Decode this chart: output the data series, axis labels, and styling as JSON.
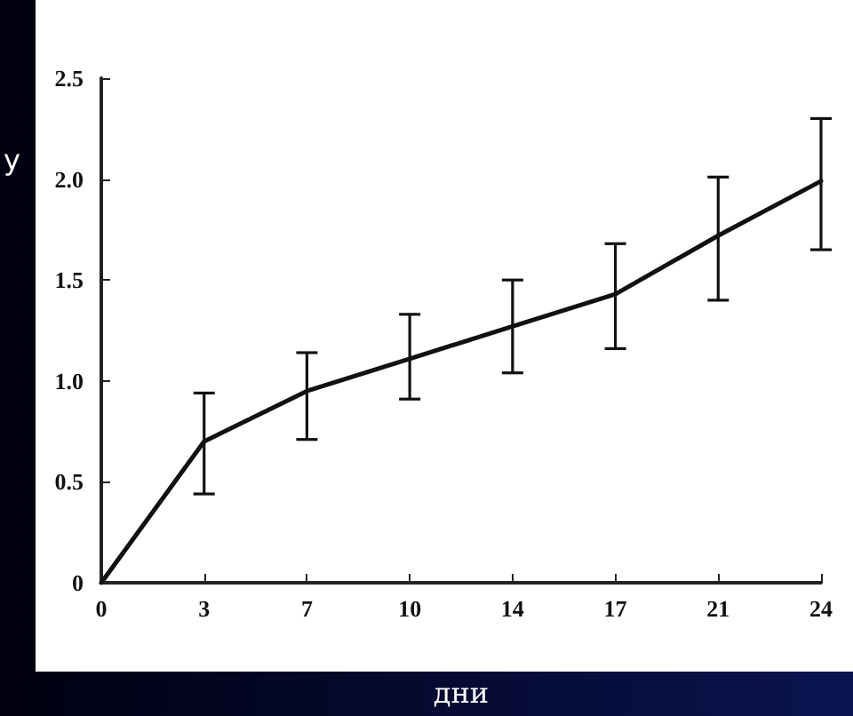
{
  "chart_data": {
    "type": "line",
    "xlabel": "дни",
    "ylabel": "у",
    "categories": [
      "0",
      "3",
      "7",
      "10",
      "14",
      "17",
      "21",
      "24"
    ],
    "series": [
      {
        "color": "#111111",
        "values": [
          0,
          0.7,
          0.95,
          1.11,
          1.27,
          1.43,
          1.72,
          1.99
        ],
        "errors": [
          null,
          [
            0.44,
            0.94
          ],
          [
            0.71,
            1.14
          ],
          [
            0.91,
            1.33
          ],
          [
            1.04,
            1.5
          ],
          [
            1.16,
            1.68
          ],
          [
            1.4,
            2.01
          ],
          [
            1.65,
            2.3
          ]
        ]
      }
    ],
    "ylim": [
      0,
      2.5
    ],
    "yticks": [
      0,
      {
        "value": 0.5,
        "label": "0.5"
      },
      {
        "value": 1,
        "label": "1.0"
      },
      {
        "value": 1.5,
        "label": "1.5"
      },
      {
        "value": 2,
        "label": "2.0"
      },
      {
        "value": 2.5,
        "label": "2.5"
      }
    ],
    "grid": false,
    "marker": "none",
    "line_style": "solid"
  }
}
